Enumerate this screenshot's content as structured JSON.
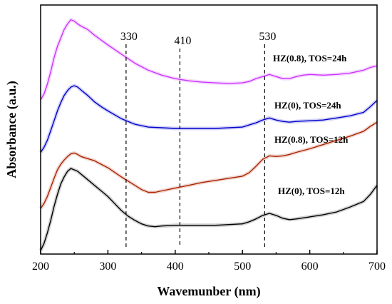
{
  "chart_data": {
    "type": "line",
    "xlabel": "Wavemunber (nm)",
    "ylabel": "Absorbance (a.u.)",
    "xlim": [
      200,
      700
    ],
    "xticks": [
      200,
      300,
      400,
      500,
      600,
      700
    ],
    "yticks": "none",
    "grid": false,
    "reference_lines": [
      {
        "x": 327,
        "label": "330"
      },
      {
        "x": 407,
        "label": "410"
      },
      {
        "x": 533,
        "label": "530"
      }
    ],
    "series": [
      {
        "name": "HZ(0.8), TOS=24h",
        "color": "#cc33ff",
        "x": [
          200,
          205,
          210,
          215,
          220,
          225,
          230,
          235,
          240,
          245,
          250,
          255,
          260,
          270,
          280,
          290,
          300,
          320,
          340,
          360,
          380,
          400,
          420,
          440,
          460,
          480,
          500,
          510,
          520,
          530,
          540,
          550,
          560,
          570,
          580,
          590,
          600,
          620,
          640,
          660,
          680,
          690,
          700
        ],
        "values": [
          3.1,
          3.18,
          3.32,
          3.5,
          3.7,
          3.86,
          3.98,
          4.1,
          4.18,
          4.24,
          4.22,
          4.18,
          4.15,
          4.1,
          4.02,
          3.95,
          3.88,
          3.75,
          3.62,
          3.52,
          3.45,
          3.4,
          3.37,
          3.35,
          3.34,
          3.33,
          3.34,
          3.36,
          3.4,
          3.43,
          3.46,
          3.43,
          3.4,
          3.4,
          3.43,
          3.45,
          3.46,
          3.45,
          3.46,
          3.48,
          3.52,
          3.56,
          3.58
        ]
      },
      {
        "name": "HZ(0), TOS=24h",
        "color": "#0000cc",
        "x": [
          200,
          205,
          210,
          215,
          220,
          225,
          230,
          235,
          240,
          245,
          250,
          255,
          260,
          270,
          280,
          290,
          300,
          320,
          340,
          360,
          380,
          400,
          420,
          440,
          460,
          480,
          500,
          510,
          520,
          530,
          540,
          550,
          560,
          570,
          580,
          600,
          620,
          640,
          660,
          680,
          690,
          700
        ],
        "values": [
          2.35,
          2.42,
          2.52,
          2.66,
          2.8,
          2.94,
          3.06,
          3.16,
          3.23,
          3.28,
          3.3,
          3.28,
          3.24,
          3.16,
          3.07,
          3.0,
          2.94,
          2.83,
          2.75,
          2.71,
          2.7,
          2.69,
          2.69,
          2.69,
          2.69,
          2.7,
          2.71,
          2.74,
          2.77,
          2.81,
          2.84,
          2.81,
          2.79,
          2.78,
          2.79,
          2.8,
          2.81,
          2.84,
          2.87,
          2.92,
          3.0,
          3.09
        ]
      },
      {
        "name": "HZ(0.8), TOS=12h",
        "color": "#aa2200",
        "x": [
          200,
          205,
          210,
          215,
          220,
          225,
          230,
          235,
          240,
          245,
          250,
          255,
          260,
          270,
          280,
          290,
          300,
          320,
          340,
          350,
          360,
          370,
          380,
          400,
          420,
          440,
          460,
          480,
          500,
          510,
          520,
          530,
          540,
          550,
          560,
          570,
          580,
          600,
          620,
          640,
          660,
          680,
          690,
          700
        ],
        "values": [
          1.55,
          1.62,
          1.72,
          1.85,
          1.98,
          2.1,
          2.18,
          2.24,
          2.29,
          2.33,
          2.34,
          2.32,
          2.29,
          2.26,
          2.23,
          2.18,
          2.13,
          2.0,
          1.88,
          1.82,
          1.78,
          1.78,
          1.8,
          1.84,
          1.88,
          1.92,
          1.95,
          1.98,
          2.01,
          2.06,
          2.15,
          2.25,
          2.3,
          2.29,
          2.3,
          2.32,
          2.35,
          2.4,
          2.46,
          2.52,
          2.58,
          2.65,
          2.72,
          2.78
        ]
      },
      {
        "name": "HZ(0), TOS=12h",
        "color": "#000000",
        "x": [
          200,
          205,
          210,
          215,
          220,
          225,
          230,
          235,
          240,
          245,
          250,
          255,
          260,
          270,
          280,
          290,
          300,
          310,
          320,
          330,
          340,
          350,
          360,
          370,
          380,
          400,
          420,
          440,
          460,
          480,
          500,
          510,
          520,
          530,
          540,
          550,
          560,
          570,
          580,
          600,
          620,
          640,
          660,
          680,
          690,
          700
        ],
        "values": [
          0.95,
          1.05,
          1.2,
          1.38,
          1.58,
          1.75,
          1.9,
          2.0,
          2.08,
          2.12,
          2.1,
          2.08,
          2.04,
          1.96,
          1.88,
          1.8,
          1.72,
          1.62,
          1.52,
          1.44,
          1.38,
          1.33,
          1.3,
          1.29,
          1.3,
          1.31,
          1.31,
          1.31,
          1.31,
          1.32,
          1.33,
          1.36,
          1.4,
          1.45,
          1.48,
          1.45,
          1.41,
          1.39,
          1.4,
          1.43,
          1.46,
          1.5,
          1.57,
          1.65,
          1.75,
          1.88
        ]
      }
    ]
  }
}
